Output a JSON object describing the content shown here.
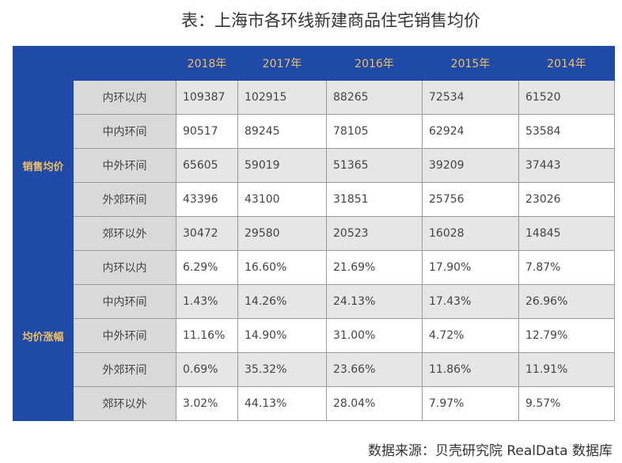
{
  "title": "表：上海市各环线新建商品住宅销售均价",
  "table": {
    "header": [
      "2018年",
      "2017年",
      "2016年",
      "2015年",
      "2014年"
    ],
    "groups": [
      {
        "label": "销售均价",
        "rows": [
          {
            "label": "内环以内",
            "cells": [
              "109387",
              "102915",
              "88265",
              "72534",
              "61520"
            ]
          },
          {
            "label": "中内环间",
            "cells": [
              "90517",
              "89245",
              "78105",
              "62924",
              "53584"
            ]
          },
          {
            "label": "中外环间",
            "cells": [
              "65605",
              "59019",
              "51365",
              "39209",
              "37443"
            ]
          },
          {
            "label": "外郊环间",
            "cells": [
              "43396",
              "43100",
              "31851",
              "25756",
              "23026"
            ]
          },
          {
            "label": "郊环以外",
            "cells": [
              "30472",
              "29580",
              "20523",
              "16028",
              "14845"
            ]
          }
        ]
      },
      {
        "label": "均价涨幅",
        "rows": [
          {
            "label": "内环以内",
            "cells": [
              "6.29%",
              "16.60%",
              "21.69%",
              "17.90%",
              "7.87%"
            ]
          },
          {
            "label": "中内环间",
            "cells": [
              "1.43%",
              "14.26%",
              "24.13%",
              "17.43%",
              "26.96%"
            ]
          },
          {
            "label": "中外环间",
            "cells": [
              "11.16%",
              "14.90%",
              "31.00%",
              "4.72%",
              "12.79%"
            ]
          },
          {
            "label": "外郊环间",
            "cells": [
              "0.69%",
              "35.32%",
              "23.66%",
              "11.86%",
              "11.91%"
            ]
          },
          {
            "label": "郊环以外",
            "cells": [
              "3.02%",
              "44.13%",
              "28.04%",
              "7.97%",
              "9.57%"
            ]
          }
        ]
      }
    ]
  },
  "source": "数据来源：贝壳研究院 RealData 数据库"
}
